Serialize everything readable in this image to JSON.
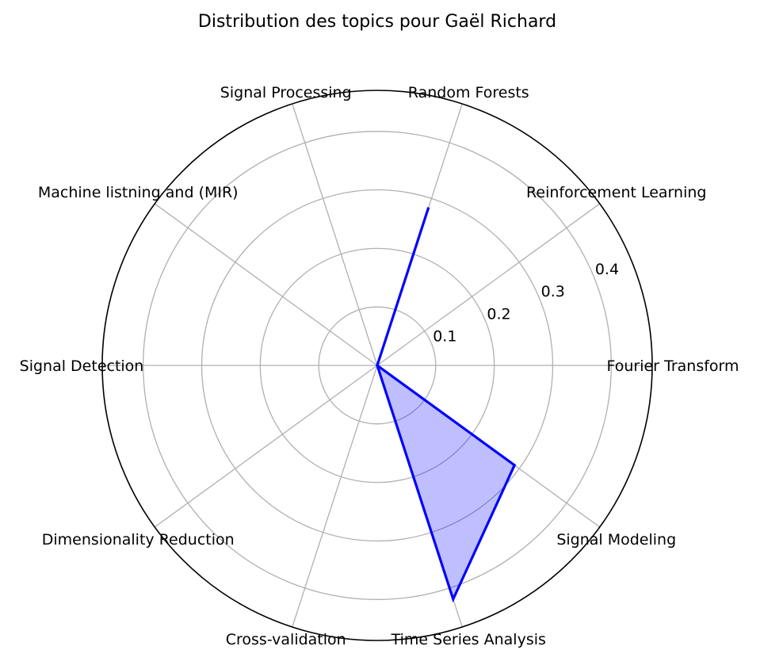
{
  "chart_data": {
    "type": "radar",
    "title": "Distribution des topics pour Gaël Richard",
    "categories": [
      "Fourier Transform",
      "Reinforcement Learning",
      "Random Forests",
      "Signal Processing",
      "Machine listning and (MIR)",
      "Signal Detection",
      "Dimensionality Reduction",
      "Cross-validation",
      "Time Series Analysis",
      "Signal Modeling"
    ],
    "rlim": [
      0,
      0.47
    ],
    "rticks": [
      0.1,
      0.2,
      0.3,
      0.4
    ],
    "rtick_labels": [
      "0.1",
      "0.2",
      "0.3",
      "0.4"
    ],
    "grid": true,
    "series": [
      {
        "values": [
          0.0,
          0.0,
          0.284,
          0.0,
          0.0,
          0.0,
          0.0,
          0.0,
          0.42,
          0.29
        ],
        "line_color": "#0000ff",
        "fill_color": "#0000ff",
        "fill_opacity": 0.25
      }
    ]
  }
}
